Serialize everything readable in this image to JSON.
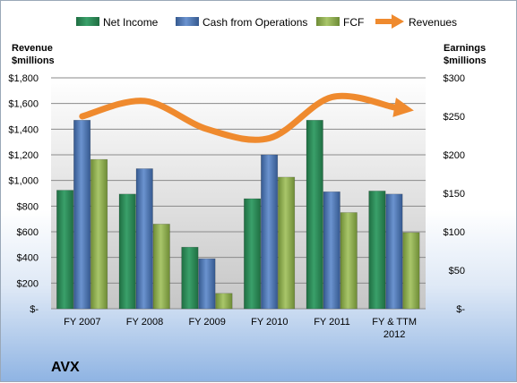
{
  "chart_data": {
    "type": "bar",
    "categories": [
      [
        "FY 2007"
      ],
      [
        "FY 2008"
      ],
      [
        "FY 2009"
      ],
      [
        "FY 2010"
      ],
      [
        "FY 2011"
      ],
      [
        "FY & TTM",
        "2012"
      ]
    ],
    "series": [
      {
        "name": "Net Income",
        "axis": "right",
        "color": "#2e8b57",
        "values": [
          154,
          149,
          80,
          143,
          245,
          153
        ]
      },
      {
        "name": "Cash from Operations",
        "axis": "right",
        "color": "#4f79b8",
        "values": [
          245,
          182,
          65,
          200,
          152,
          149
        ]
      },
      {
        "name": "FCF",
        "axis": "right",
        "color": "#8fb050",
        "values": [
          194,
          110,
          20,
          171,
          125,
          99
        ]
      }
    ],
    "line_series": {
      "name": "Revenues",
      "axis": "left",
      "color": "#ef8a2e",
      "values": [
        1500,
        1620,
        1400,
        1330,
        1650,
        1570
      ]
    },
    "left_axis": {
      "title": [
        "Revenue",
        "$millions"
      ],
      "ylim": [
        0,
        1800
      ],
      "ticks": [
        "$-",
        "$200",
        "$400",
        "$600",
        "$800",
        "$1,000",
        "$1,200",
        "$1,400",
        "$1,600",
        "$1,800"
      ]
    },
    "right_axis": {
      "title": [
        "Earnings",
        "$millions"
      ],
      "ylim": [
        0,
        300
      ],
      "ticks": [
        "$-",
        "$50",
        "$100",
        "$150",
        "$200",
        "$250",
        "$300"
      ]
    },
    "legend_position": "top",
    "grid": true
  },
  "brand": "AVX"
}
